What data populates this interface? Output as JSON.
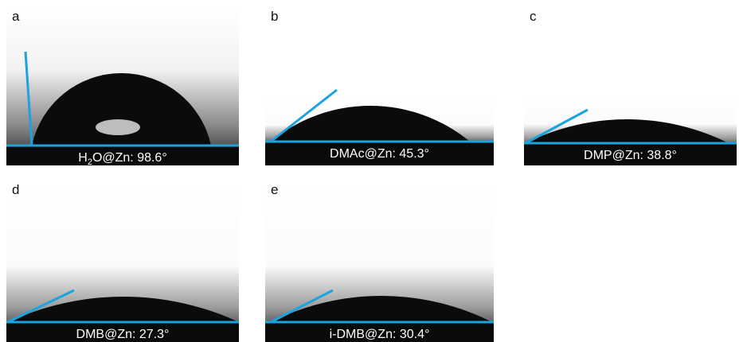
{
  "panels": [
    {
      "letter": "a",
      "caption": [
        {
          "text": "H"
        },
        {
          "text": "2",
          "sub": true
        },
        {
          "text": "O@Zn: 98.6°"
        }
      ]
    },
    {
      "letter": "b",
      "caption": [
        {
          "text": "DMAc@Zn: 45.3°"
        }
      ]
    },
    {
      "letter": "c",
      "caption": [
        {
          "text": "DMP@Zn: 38.8°"
        }
      ]
    },
    {
      "letter": "d",
      "caption": [
        {
          "text": "DMB@Zn: 27.3°"
        }
      ]
    },
    {
      "letter": "e",
      "caption": [
        {
          "text": "i-DMB@Zn: 30.4°"
        }
      ]
    }
  ]
}
